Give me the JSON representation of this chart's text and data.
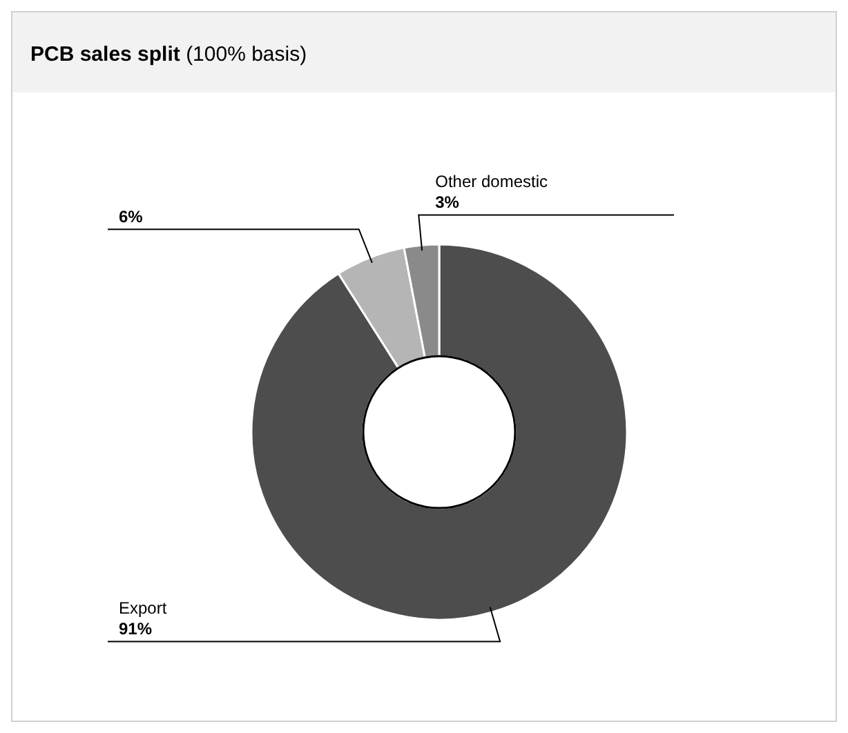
{
  "chart_data": {
    "type": "donut",
    "title": "PCB sales split",
    "subtitle": "(100% basis)",
    "categories": [
      "Export",
      null,
      "Other domestic"
    ],
    "values": [
      91,
      6,
      3
    ],
    "colors": [
      "#4d4d4d",
      "#b5b5b5",
      "#8a8a8a"
    ],
    "value_labels": [
      "91%",
      "6%",
      "3%"
    ]
  }
}
